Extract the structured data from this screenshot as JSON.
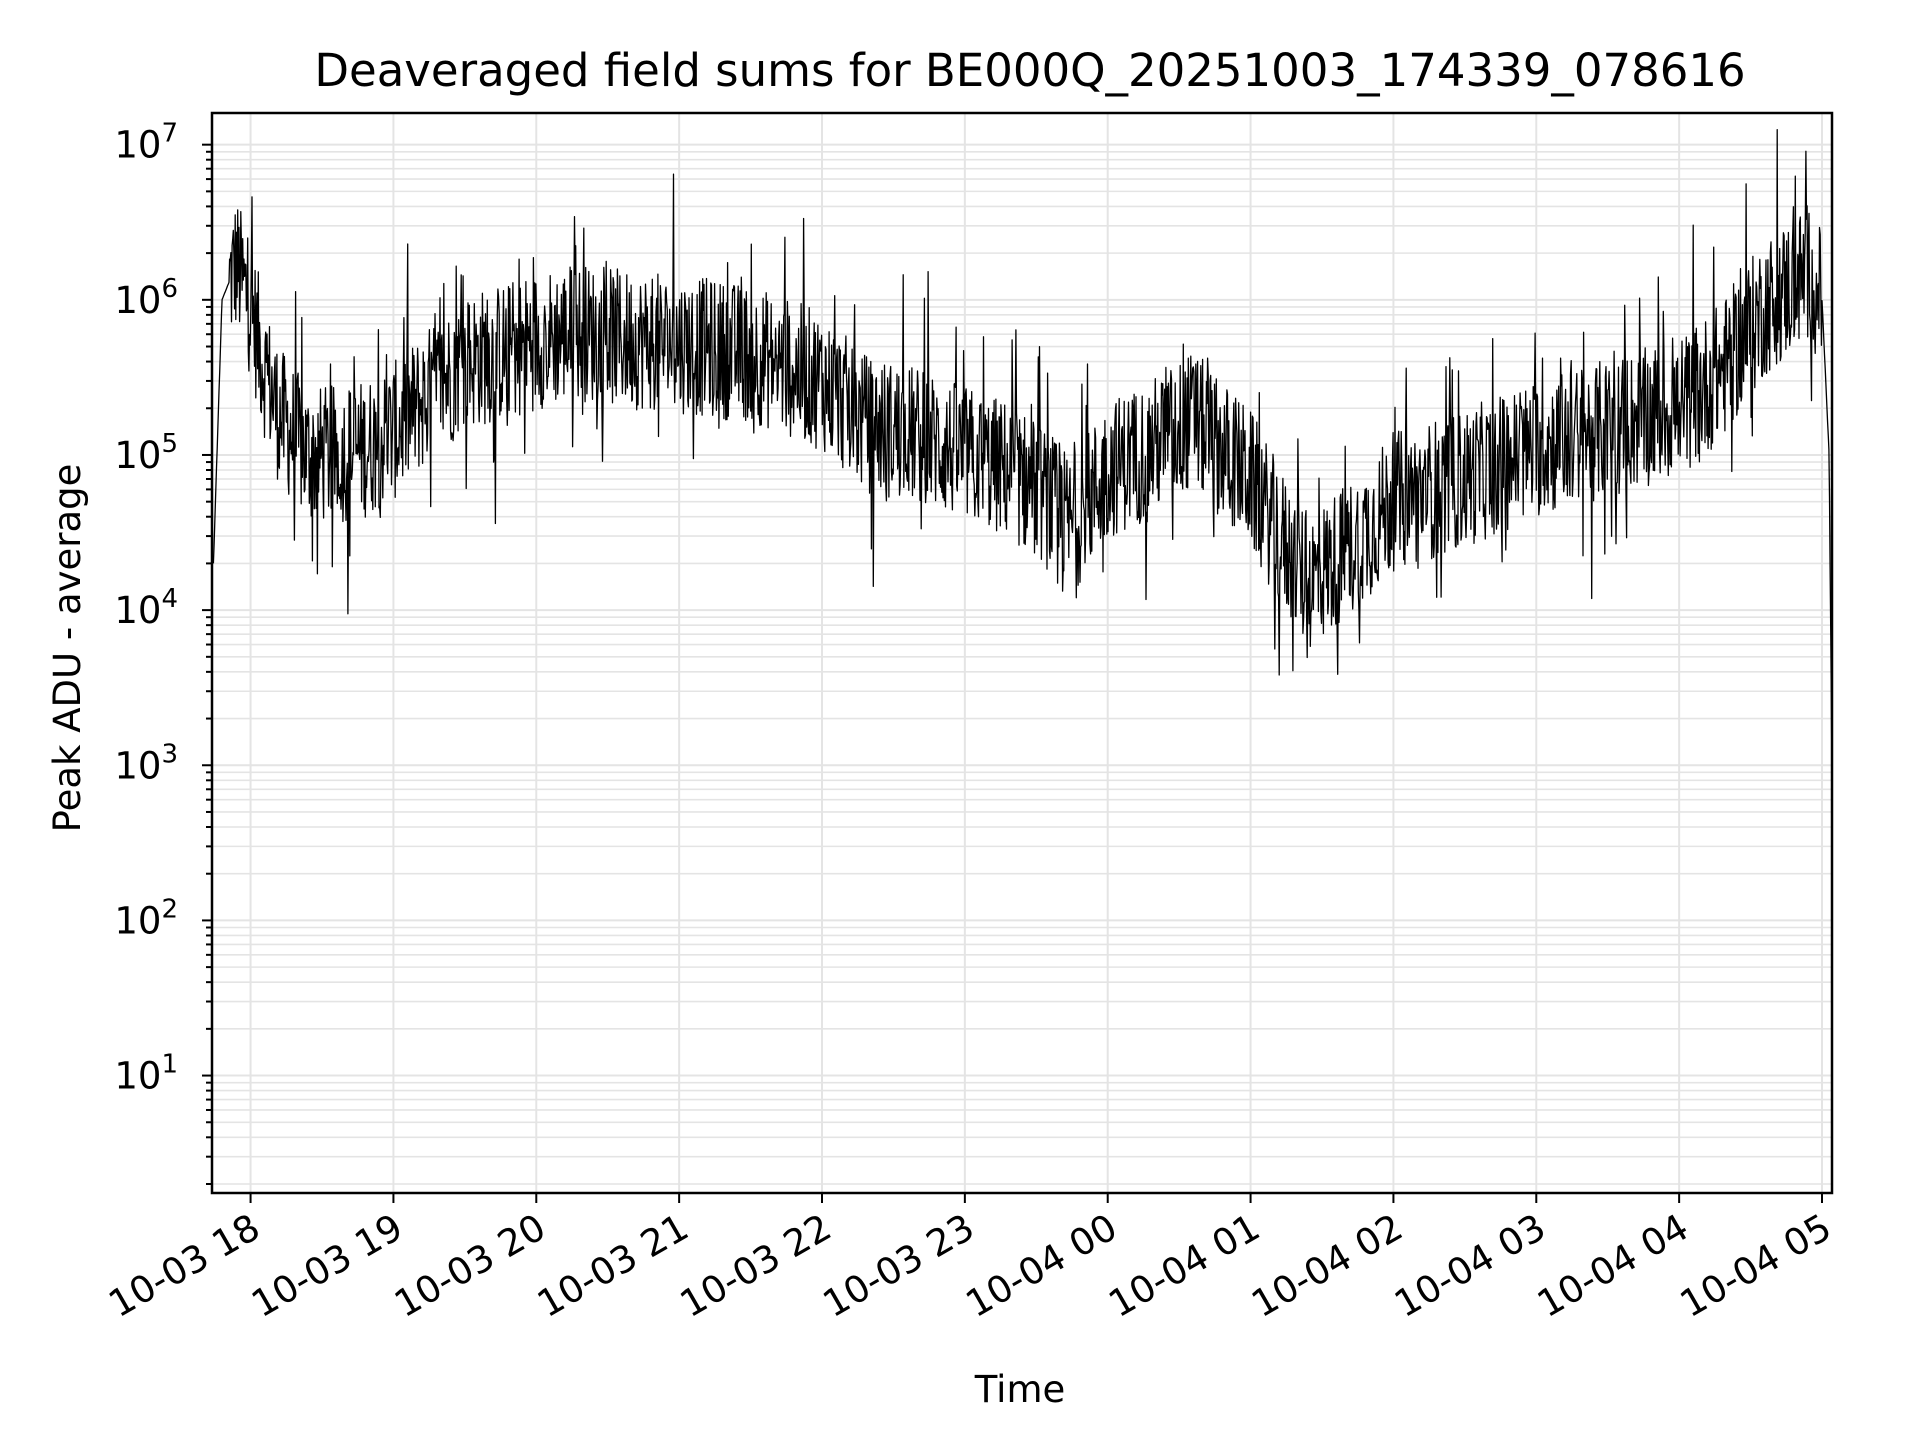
{
  "chart_data": {
    "type": "line",
    "title": "Deaveraged field sums for BE000Q_20251003_174339_078616",
    "xlabel": "Time",
    "ylabel": "Peak ADU - average",
    "yscale": "log",
    "ylim": [
      1.75,
      16000000
    ],
    "xlim_hours": [
      17.73,
      29.07
    ],
    "grid": true,
    "line_color": "#000000",
    "x_ticks": [
      {
        "label": "10-03 18",
        "hour": 18
      },
      {
        "label": "10-03 19",
        "hour": 19
      },
      {
        "label": "10-03 20",
        "hour": 20
      },
      {
        "label": "10-03 21",
        "hour": 21
      },
      {
        "label": "10-03 22",
        "hour": 22
      },
      {
        "label": "10-03 23",
        "hour": 23
      },
      {
        "label": "10-04 00",
        "hour": 24
      },
      {
        "label": "10-04 01",
        "hour": 25
      },
      {
        "label": "10-04 02",
        "hour": 26
      },
      {
        "label": "10-04 03",
        "hour": 27
      },
      {
        "label": "10-04 04",
        "hour": 28
      },
      {
        "label": "10-04 05",
        "hour": 29
      }
    ],
    "y_ticks": [
      {
        "base": "10",
        "exp": "1",
        "value": 10
      },
      {
        "base": "10",
        "exp": "2",
        "value": 100
      },
      {
        "base": "10",
        "exp": "3",
        "value": 1000
      },
      {
        "base": "10",
        "exp": "4",
        "value": 10000
      },
      {
        "base": "10",
        "exp": "5",
        "value": 100000
      },
      {
        "base": "10",
        "exp": "6",
        "value": 1000000
      },
      {
        "base": "10",
        "exp": "7",
        "value": 10000000
      }
    ],
    "series": [
      {
        "name": "deaveraged field sum",
        "hours": [
          17.74,
          17.8,
          17.9,
          18.0,
          18.1,
          18.2,
          18.4,
          18.6,
          18.8,
          19.0,
          19.2,
          19.5,
          19.8,
          20.0,
          20.3,
          20.6,
          21.0,
          21.5,
          22.0,
          22.3,
          22.7,
          23.0,
          23.3,
          23.5,
          23.75,
          24.0,
          24.3,
          24.6,
          25.0,
          25.2,
          25.4,
          25.7,
          26.0,
          26.5,
          27.0,
          27.5,
          28.0,
          28.3,
          28.6,
          28.9,
          29.0,
          29.05,
          29.07
        ],
        "values": [
          20000,
          1000000,
          1700000,
          900000,
          350000,
          180000,
          100000,
          100000,
          110000,
          140000,
          220000,
          400000,
          470000,
          550000,
          620000,
          560000,
          520000,
          450000,
          300000,
          160000,
          130000,
          100000,
          80000,
          60000,
          35000,
          80000,
          110000,
          170000,
          70000,
          30000,
          15000,
          25000,
          50000,
          70000,
          110000,
          150000,
          200000,
          350000,
          900000,
          1500000,
          1000000,
          100000,
          800
        ]
      }
    ]
  }
}
